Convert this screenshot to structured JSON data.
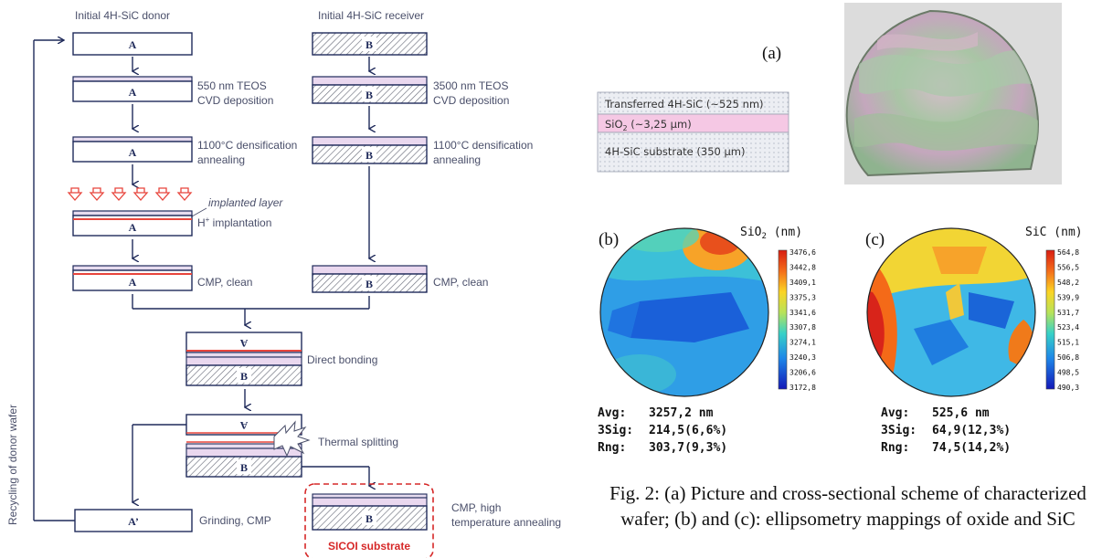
{
  "flow": {
    "donor_title": "Initial 4H-SiC donor",
    "receiver_title": "Initial 4H-SiC receiver",
    "label_a": "A",
    "label_b": "B",
    "label_a_flipped": "A",
    "label_a_prime": "A’",
    "step_teos_donor": [
      "550 nm TEOS",
      "CVD deposition"
    ],
    "step_teos_receiver": [
      "3500 nm TEOS",
      "CVD deposition"
    ],
    "step_densification": [
      "1100°C densification",
      "annealing"
    ],
    "implanted_layer": "implanted layer",
    "h_implant": "H",
    "h_implant_sup": "+",
    "h_implant_rest": " implantation",
    "cmp_clean": "CMP, clean",
    "direct_bonding": "Direct bonding",
    "thermal_splitting": "Thermal splitting",
    "cmp_high_temp": [
      "CMP, high",
      "temperature annealing"
    ],
    "grinding": "Grinding, CMP",
    "sicoi": "SICOI substrate",
    "recycling": "Recycling of donor wafer",
    "colors": {
      "box_line": "#1f2a5a",
      "implant": "#e8453c",
      "sicoi": "#d62828",
      "text": "#4a4f6a"
    }
  },
  "panel_a": {
    "label": "(a)",
    "layer1": "Transferred 4H-SiC (~525 nm)",
    "layer2_pre": "SiO",
    "layer2_sub": "2",
    "layer2_post": " (~3,25 µm)",
    "layer3": "4H-SiC substrate (350 µm)"
  },
  "map_b": {
    "label": "(b)",
    "title_pre": "SiO",
    "title_sub": "2",
    "title_post": " (nm)",
    "scale": [
      "3476,6",
      "3442,8",
      "3409,1",
      "3375,3",
      "3341,6",
      "3307,8",
      "3274,1",
      "3240,3",
      "3206,6",
      "3172,8"
    ],
    "stats": [
      {
        "key": "Avg:",
        "value": "3257,2 nm"
      },
      {
        "key": "3Sig:",
        "value": "214,5(6,6%)"
      },
      {
        "key": "Rng:",
        "value": "303,7(9,3%)"
      }
    ]
  },
  "map_c": {
    "label": "(c)",
    "title": "SiC (nm)",
    "scale": [
      "564,8",
      "556,5",
      "548,2",
      "539,9",
      "531,7",
      "523,4",
      "515,1",
      "506,8",
      "498,5",
      "490,3"
    ],
    "stats": [
      {
        "key": "Avg:",
        "value": "525,6 nm"
      },
      {
        "key": "3Sig:",
        "value": "64,9(12,3%)"
      },
      {
        "key": "Rng:",
        "value": "74,5(14,2%)"
      }
    ]
  },
  "caption": "Fig. 2: (a) Picture and cross-sectional scheme of characterized wafer; (b) and (c): ellipsometry mappings of oxide and SiC"
}
